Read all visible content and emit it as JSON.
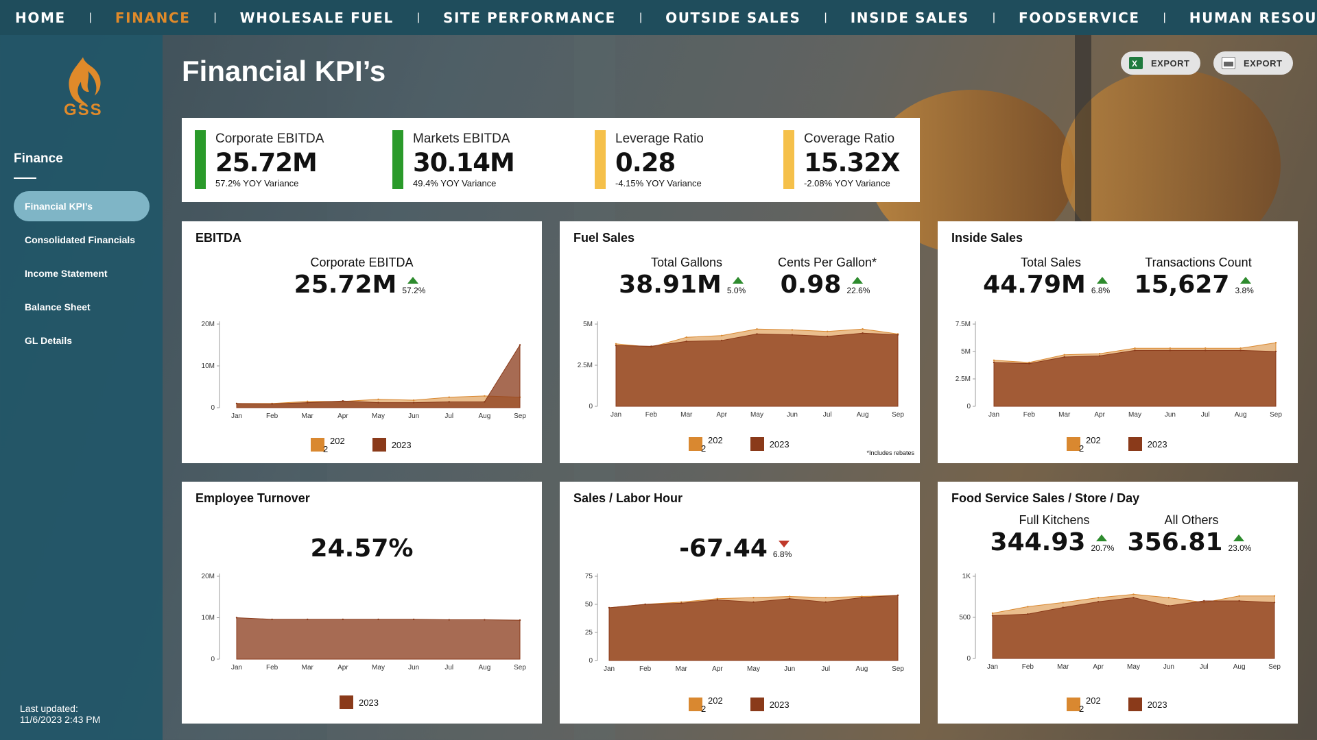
{
  "nav": {
    "items": [
      "HOME",
      "FINANCE",
      "WHOLESALE FUEL",
      "SITE PERFORMANCE",
      "OUTSIDE SALES",
      "INSIDE SALES",
      "FOODSERVICE",
      "HUMAN RESOURCES"
    ],
    "active": "FINANCE"
  },
  "sidebar": {
    "logo_text": "GSS",
    "section": "Finance",
    "items": [
      "Financial KPI’s",
      "Consolidated Financials",
      "Income Statement",
      "Balance Sheet",
      "GL Details"
    ],
    "active": "Financial KPI’s",
    "last_updated_label": "Last updated:",
    "last_updated_value": "11/6/2023 2:43 PM"
  },
  "header": {
    "title": "Financial KPI’s",
    "export_excel": "EXPORT",
    "export_pdf": "EXPORT"
  },
  "kpis": [
    {
      "label": "Corporate EBITDA",
      "value": "25.72M",
      "variance": "57.2% YOY Variance",
      "color": "#2a9a2a"
    },
    {
      "label": "Markets EBITDA",
      "value": "30.14M",
      "variance": "49.4% YOY Variance",
      "color": "#2a9a2a"
    },
    {
      "label": "Leverage Ratio",
      "value": "0.28",
      "variance": "-4.15% YOY Variance",
      "color": "#f5c04a"
    },
    {
      "label": "Coverage Ratio",
      "value": "15.32X",
      "variance": "-2.08% YOY Variance",
      "color": "#f5c04a"
    }
  ],
  "colors": {
    "c2022": "#d98830",
    "c2023": "#8a3a1a",
    "up": "#2e8b2e",
    "down": "#c0392b"
  },
  "cards": {
    "ebitda": {
      "title": "EBITDA",
      "metrics": [
        {
          "label": "Corporate EBITDA",
          "value": "25.72M",
          "delta": "57.2%",
          "dir": "up"
        }
      ],
      "legend": [
        "202",
        "2023"
      ]
    },
    "fuel": {
      "title": "Fuel Sales",
      "metrics": [
        {
          "label": "Total Gallons",
          "value": "38.91M",
          "delta": "5.0%",
          "dir": "up"
        },
        {
          "label": "Cents Per Gallon*",
          "value": "0.98",
          "delta": "22.6%",
          "dir": "up"
        }
      ],
      "legend": [
        "202",
        "2023"
      ],
      "footnote": "*Includes rebates"
    },
    "inside": {
      "title": "Inside Sales",
      "metrics": [
        {
          "label": "Total Sales",
          "value": "44.79M",
          "delta": "6.8%",
          "dir": "up"
        },
        {
          "label": "Transactions Count",
          "value": "15,627",
          "delta": "3.8%",
          "dir": "up"
        }
      ],
      "legend": [
        "202",
        "2023"
      ]
    },
    "turnover": {
      "title": "Employee Turnover",
      "metrics": [
        {
          "label": "",
          "value": "24.57%",
          "delta": "",
          "dir": ""
        }
      ],
      "legend": [
        "2023"
      ]
    },
    "labor": {
      "title": "Sales / Labor Hour",
      "metrics": [
        {
          "label": "",
          "value": "-67.44",
          "delta": "6.8%",
          "dir": "down"
        }
      ],
      "legend": [
        "202",
        "2023"
      ]
    },
    "food": {
      "title": "Food Service Sales / Store / Day",
      "metrics": [
        {
          "label": "Full Kitchens",
          "value": "344.93",
          "delta": "20.7%",
          "dir": "up"
        },
        {
          "label": "All Others",
          "value": "356.81",
          "delta": "23.0%",
          "dir": "up"
        }
      ],
      "legend": [
        "202",
        "2023"
      ]
    }
  },
  "chart_data": [
    {
      "id": "ebitda",
      "type": "area",
      "categories": [
        "Jan",
        "Feb",
        "Mar",
        "Apr",
        "May",
        "Jun",
        "Jul",
        "Aug",
        "Sep"
      ],
      "ylim": [
        0,
        20000000
      ],
      "yticks": [
        "0",
        "10M",
        "20M"
      ],
      "ytick_values": [
        0,
        10000000,
        20000000
      ],
      "series": [
        {
          "name": "2022",
          "values": [
            1000000,
            1000000,
            1500000,
            1500000,
            2000000,
            1800000,
            2500000,
            2800000,
            2500000
          ]
        },
        {
          "name": "2023",
          "values": [
            1000000,
            900000,
            1200000,
            1600000,
            1200000,
            1200000,
            1400000,
            1400000,
            15000000
          ]
        }
      ]
    },
    {
      "id": "fuel",
      "type": "area",
      "categories": [
        "Jan",
        "Feb",
        "Mar",
        "Apr",
        "May",
        "Jun",
        "Jul",
        "Aug",
        "Sep"
      ],
      "ylim": [
        0,
        5000000
      ],
      "yticks": [
        "0",
        "2.5M",
        "5M"
      ],
      "ytick_values": [
        0,
        2500000,
        5000000
      ],
      "series": [
        {
          "name": "2022",
          "values": [
            3800000,
            3600000,
            4200000,
            4300000,
            4700000,
            4650000,
            4550000,
            4700000,
            4400000
          ]
        },
        {
          "name": "2023",
          "values": [
            3700000,
            3650000,
            3950000,
            4000000,
            4400000,
            4350000,
            4250000,
            4450000,
            4350000
          ]
        }
      ]
    },
    {
      "id": "inside",
      "type": "area",
      "categories": [
        "Jan",
        "Feb",
        "Mar",
        "Apr",
        "May",
        "Jun",
        "Jul",
        "Aug",
        "Sep"
      ],
      "ylim": [
        0,
        7500000
      ],
      "yticks": [
        "0",
        "2.5M",
        "5M",
        "7.5M"
      ],
      "ytick_values": [
        0,
        2500000,
        5000000,
        7500000
      ],
      "series": [
        {
          "name": "2022",
          "values": [
            4200000,
            4000000,
            4700000,
            4800000,
            5300000,
            5300000,
            5300000,
            5300000,
            5800000
          ]
        },
        {
          "name": "2023",
          "values": [
            4000000,
            3900000,
            4500000,
            4600000,
            5100000,
            5100000,
            5100000,
            5100000,
            5000000
          ]
        }
      ]
    },
    {
      "id": "turnover",
      "type": "area",
      "categories": [
        "Jan",
        "Feb",
        "Mar",
        "Apr",
        "May",
        "Jun",
        "Jul",
        "Aug",
        "Sep"
      ],
      "ylim": [
        0,
        20000000
      ],
      "yticks": [
        "0",
        "10M",
        "20M"
      ],
      "ytick_values": [
        0,
        10000000,
        20000000
      ],
      "series": [
        {
          "name": "2023",
          "values": [
            10000000,
            9600000,
            9600000,
            9600000,
            9600000,
            9600000,
            9500000,
            9500000,
            9400000
          ]
        }
      ]
    },
    {
      "id": "labor",
      "type": "area",
      "categories": [
        "Jan",
        "Feb",
        "Mar",
        "Apr",
        "May",
        "Jun",
        "Jul",
        "Aug",
        "Sep"
      ],
      "ylim": [
        0,
        75
      ],
      "yticks": [
        "0",
        "25",
        "50",
        "75"
      ],
      "ytick_values": [
        0,
        25,
        50,
        75
      ],
      "series": [
        {
          "name": "2022",
          "values": [
            47,
            50,
            52,
            55,
            56,
            57,
            56,
            57,
            58
          ]
        },
        {
          "name": "2023",
          "values": [
            47,
            50,
            51,
            54,
            52,
            55,
            52,
            56,
            58
          ]
        }
      ]
    },
    {
      "id": "food",
      "type": "area",
      "categories": [
        "Jan",
        "Feb",
        "Mar",
        "Apr",
        "May",
        "Jun",
        "Jul",
        "Aug",
        "Sep"
      ],
      "ylim": [
        0,
        1000
      ],
      "yticks": [
        "0",
        "500",
        "1K"
      ],
      "ytick_values": [
        0,
        500,
        1000
      ],
      "series": [
        {
          "name": "2022",
          "values": [
            550,
            630,
            680,
            740,
            780,
            740,
            680,
            760,
            760
          ]
        },
        {
          "name": "2023",
          "values": [
            520,
            540,
            620,
            690,
            740,
            640,
            700,
            700,
            680
          ]
        }
      ]
    }
  ]
}
